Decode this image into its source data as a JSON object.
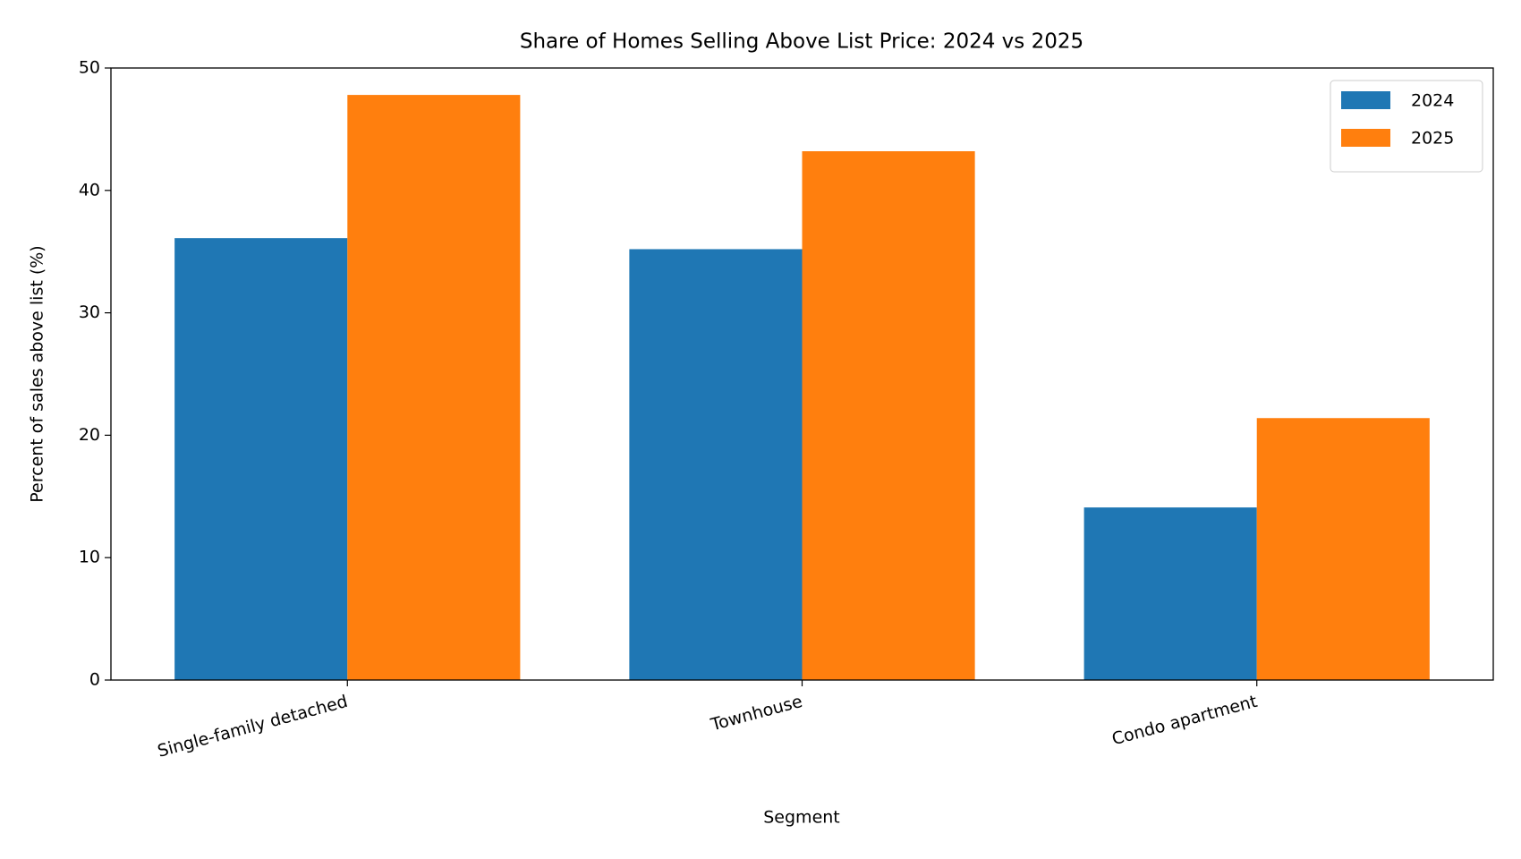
{
  "chart_data": {
    "type": "bar",
    "title": "Share of Homes Selling Above List Price: 2024 vs 2025",
    "x_label": "Segment",
    "y_label": "Percent of sales above list (%)",
    "categories": [
      "Single-family detached",
      "Townhouse",
      "Condo apartment"
    ],
    "series": [
      {
        "name": "2024",
        "color": "#1f77b4",
        "values": [
          36.1,
          35.2,
          14.1
        ]
      },
      {
        "name": "2025",
        "color": "#ff7f0e",
        "values": [
          47.8,
          43.2,
          21.4
        ]
      }
    ],
    "ylim": [
      0,
      50
    ],
    "yticks": [
      0,
      10,
      20,
      30,
      40,
      50
    ],
    "grid": false,
    "legend": "upper right"
  }
}
